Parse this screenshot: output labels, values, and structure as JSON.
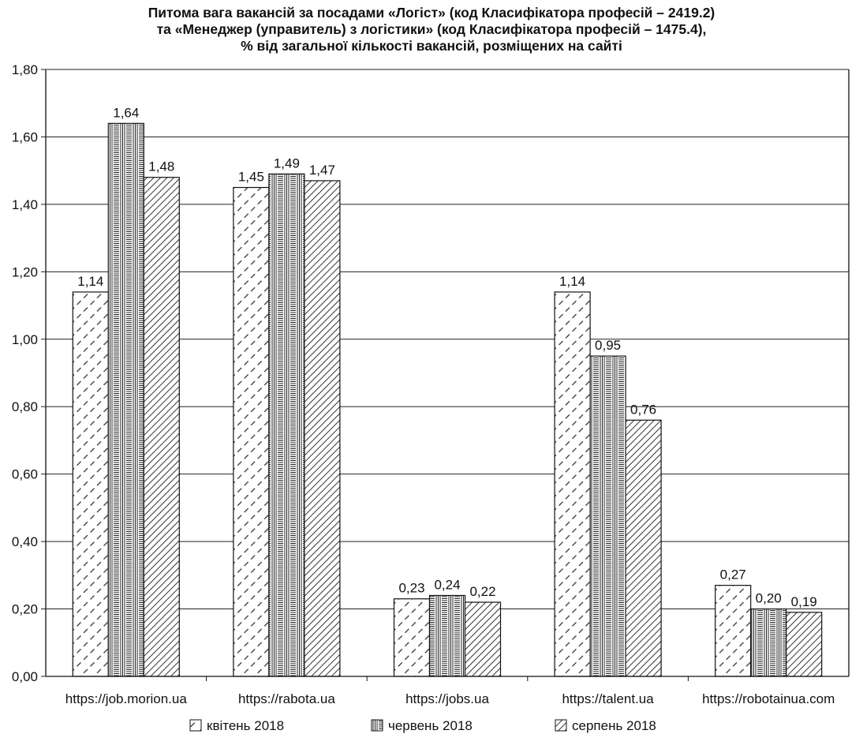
{
  "chart_data": {
    "type": "bar",
    "title_lines": [
      "Питома вага вакансій за посадами «Логіст» (код Класифікатора професій – 2419.2)",
      "та «Менеджер (управитель) з логістики» (код Класифікатора професій – 1475.4),",
      "% від загальної кількості вакансій, розміщених на сайті"
    ],
    "categories": [
      "https://job.morion.ua",
      "https://rabota.ua",
      "https://jobs.ua",
      "https://talent.ua",
      "https://robotainua.com"
    ],
    "series": [
      {
        "name": "квітень 2018",
        "pattern": "diag-dashed",
        "values": [
          1.14,
          1.45,
          0.23,
          1.14,
          0.27
        ],
        "labels": [
          "1,14",
          "1,45",
          "0,23",
          "1,14",
          "0,27"
        ]
      },
      {
        "name": "червень 2018",
        "pattern": "brick",
        "values": [
          1.64,
          1.49,
          0.24,
          0.95,
          0.2
        ],
        "labels": [
          "1,64",
          "1,49",
          "0,24",
          "0,95",
          "0,20"
        ]
      },
      {
        "name": "серпень 2018",
        "pattern": "diag-lines",
        "values": [
          1.48,
          1.47,
          0.22,
          0.76,
          0.19
        ],
        "labels": [
          "1,48",
          "1,47",
          "0,22",
          "0,76",
          "0,19"
        ]
      }
    ],
    "ylim": [
      0,
      1.8
    ],
    "yticks": [
      "0,00",
      "0,20",
      "0,40",
      "0,60",
      "0,80",
      "1,00",
      "1,20",
      "1,40",
      "1,60",
      "1,80"
    ],
    "grid": true,
    "legend_position": "bottom"
  }
}
